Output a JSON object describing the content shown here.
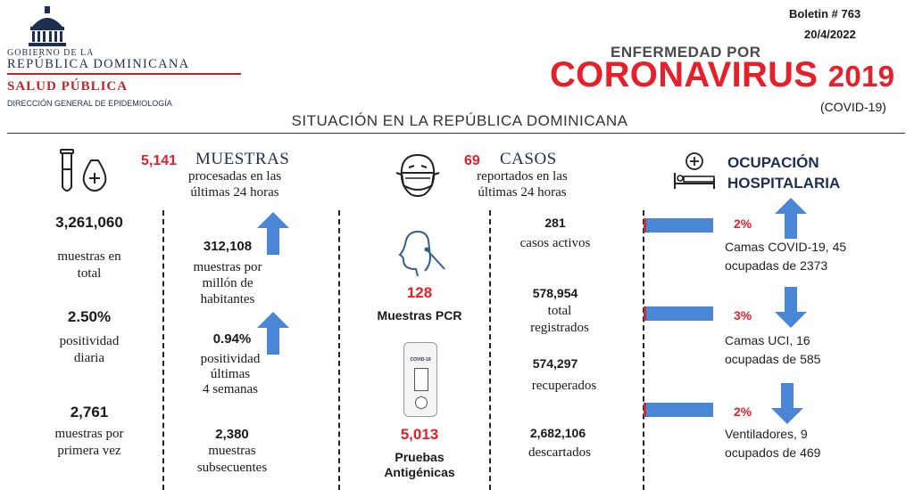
{
  "header": {
    "gov_line1": "GOBIERNO DE LA",
    "gov_line2": "REPÚBLICA DOMINICANA",
    "ministry": "SALUD PÚBLICA",
    "direction": "DIRECCIÓN GENERAL DE EPIDEMIOLOGÍA",
    "bulletin": "Boletin # 763",
    "date": "20/4/2022",
    "title_small": "ENFERMEDAD POR",
    "title_big": "CORONAVIRUS",
    "title_year": "2019",
    "title_sub": "(COVID-19)",
    "situation": "SITUACIÓN EN LA REPÚBLICA DOMINICANA"
  },
  "muestras": {
    "count": "5,141",
    "title": "MUESTRAS",
    "subtitle_l1": "procesadas en las",
    "subtitle_l2": "últimas 24 horas",
    "total_value": "3,261,060",
    "total_l1": "muestras en",
    "total_l2": "total",
    "pos_daily_value": "2.50%",
    "pos_daily_l1": "positividad",
    "pos_daily_l2": "diaria",
    "first_value": "2,761",
    "first_l1": "muestras por",
    "first_l2": "primera vez",
    "per_million_value": "312,108",
    "per_million_l1": "muestras por",
    "per_million_l2": "millón de",
    "per_million_l3": "habitantes",
    "pos_4w_value": "0.94%",
    "pos_4w_l1": "positividad",
    "pos_4w_l2": "últimas",
    "pos_4w_l3": "4 semanas",
    "subseq_value": "2,380",
    "subseq_l1": "muestras",
    "subseq_l2": "subsecuentes"
  },
  "casos": {
    "count": "69",
    "title": "CASOS",
    "subtitle_l1": "reportados en las",
    "subtitle_l2": "últimas 24 horas",
    "pcr_value": "128",
    "pcr_label": "Muestras PCR",
    "antigen_value": "5,013",
    "antigen_l1": "Pruebas",
    "antigen_l2": "Antigénicas",
    "active_value": "281",
    "active_label": "casos activos",
    "total_value": "578,954",
    "total_l1": "total",
    "total_l2": "registrados",
    "recovered_value": "574,297",
    "recovered_label": "recuperados",
    "discarded_value": "2,682,106",
    "discarded_label": "descartados",
    "kit_label": "COVID-19"
  },
  "hospital": {
    "title_l1": "OCUPACIÓN",
    "title_l2": "HOSPITALARIA",
    "beds_pct": "2%",
    "beds_l1": "Camas COVID-19,  45",
    "beds_l2": "ocupadas de 2373",
    "icu_pct": "3%",
    "icu_l1": "Camas UCI,  16",
    "icu_l2": "ocupadas de 585",
    "vent_pct": "2%",
    "vent_l1": "Ventiladores, 9",
    "vent_l2": "ocupados de 469"
  },
  "colors": {
    "red": "#e5202a",
    "navy": "#1f2f52",
    "blue": "#4a86d6"
  }
}
